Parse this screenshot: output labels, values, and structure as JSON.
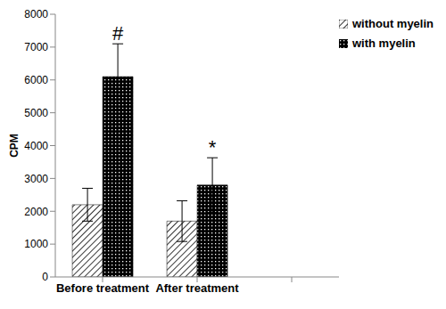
{
  "chart_data": {
    "type": "bar",
    "categories": [
      "Before treatment",
      "After treatment",
      null
    ],
    "series": [
      {
        "name": "without myelin",
        "color": "#000000",
        "values": [
          2200,
          1700,
          null
        ],
        "errors": [
          500,
          620,
          null
        ]
      },
      {
        "name": "with myelin",
        "color": "#000000",
        "values": [
          6100,
          2800,
          null
        ],
        "errors": [
          1000,
          830,
          null
        ],
        "annotations": [
          "#",
          "*",
          null
        ]
      }
    ],
    "y_label": "CPM",
    "ylim": [
      0,
      8000
    ],
    "yticks": [
      0,
      1000,
      2000,
      3000,
      4000,
      5000,
      6000,
      7000,
      8000
    ],
    "grid": false,
    "legend": "upper right"
  }
}
